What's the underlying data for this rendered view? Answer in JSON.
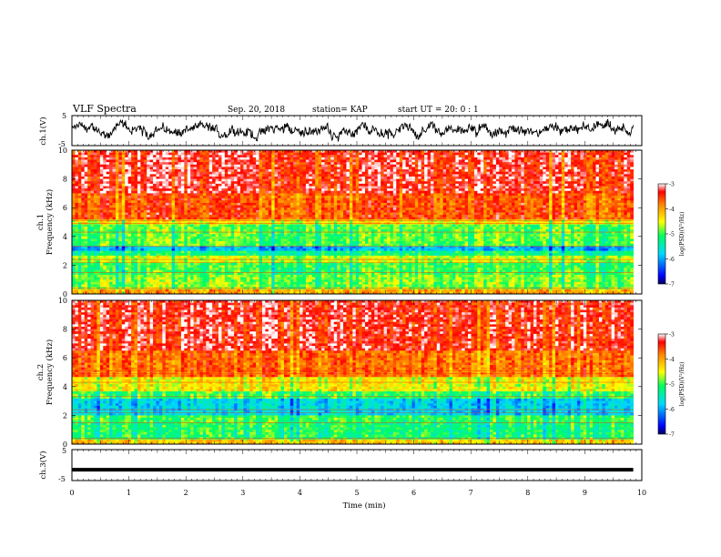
{
  "header": {
    "title": "VLF Spectra",
    "date": "Sep. 20, 2018",
    "station": "station= KAP",
    "start": "start  UT =   20: 0  : 1"
  },
  "chart_data": [
    {
      "type": "line",
      "panel": "ch1-waveform",
      "ylabel": "ch.1(V)",
      "ylim": [
        -5,
        5
      ],
      "yticks": [
        "5",
        "-5"
      ],
      "xlim": [
        0,
        10
      ],
      "description_values": "noisy waveform oscillating roughly between -4 and 5 V",
      "color": "#000000"
    },
    {
      "type": "heatmap",
      "panel": "ch1-spectrogram",
      "ylabel": "ch.1\nFrequency  (kHz)",
      "ylabel_lines": [
        "ch.1",
        "Frequency  (kHz)"
      ],
      "ylim": [
        0,
        10
      ],
      "yticks": [
        "0",
        "2",
        "4",
        "6",
        "8",
        "10"
      ],
      "xlim": [
        0,
        9.85
      ],
      "colorbar": {
        "label": "log(PSD)(V²/Hz)",
        "ticks": [
          "-3",
          "-4",
          "-5",
          "-6",
          "-7"
        ],
        "range": [
          -7,
          -3
        ]
      },
      "bands": [
        {
          "from": 0,
          "to": 0.4,
          "level": -4.0
        },
        {
          "from": 0.4,
          "to": 1.3,
          "level": -4.8
        },
        {
          "from": 1.3,
          "to": 2.2,
          "level": -5.0
        },
        {
          "from": 2.2,
          "to": 2.6,
          "level": -4.6
        },
        {
          "from": 2.6,
          "to": 3.0,
          "level": -5.2
        },
        {
          "from": 3.0,
          "to": 3.4,
          "level": -5.9
        },
        {
          "from": 3.4,
          "to": 4.8,
          "level": -4.9
        },
        {
          "from": 4.8,
          "to": 5.2,
          "level": -4.4
        },
        {
          "from": 5.2,
          "to": 7.0,
          "level": -3.6
        },
        {
          "from": 7.0,
          "to": 10,
          "level": -3.3
        }
      ]
    },
    {
      "type": "heatmap",
      "panel": "ch2-spectrogram",
      "ylabel_lines": [
        "ch.2",
        "Frequency  (kHz)"
      ],
      "ylim": [
        0,
        10
      ],
      "yticks": [
        "0",
        "2",
        "4",
        "6",
        "8",
        "10"
      ],
      "xlim": [
        0,
        9.85
      ],
      "colorbar": {
        "label": "log(PSD)(V²/Hz)",
        "ticks": [
          "-3",
          "-4",
          "-5",
          "-6",
          "-7"
        ],
        "range": [
          -7,
          -3
        ]
      },
      "bands": [
        {
          "from": 0,
          "to": 0.4,
          "level": -4.2
        },
        {
          "from": 0.4,
          "to": 1.5,
          "level": -5.1
        },
        {
          "from": 1.5,
          "to": 2.0,
          "level": -5.0
        },
        {
          "from": 2.0,
          "to": 3.1,
          "level": -5.7
        },
        {
          "from": 3.1,
          "to": 3.7,
          "level": -5.0
        },
        {
          "from": 3.7,
          "to": 4.6,
          "level": -4.4
        },
        {
          "from": 4.6,
          "to": 6.5,
          "level": -3.7
        },
        {
          "from": 6.5,
          "to": 10,
          "level": -3.3
        }
      ]
    },
    {
      "type": "line",
      "panel": "ch3-waveform",
      "ylabel": "ch.3(V)",
      "ylim": [
        -5,
        5
      ],
      "yticks": [
        "5",
        "-5"
      ],
      "xlim": [
        0,
        10
      ],
      "xlabel": "Time  (min)",
      "xticks": [
        "0",
        "1",
        "2",
        "3",
        "4",
        "5",
        "6",
        "7",
        "8",
        "9",
        "10"
      ],
      "values_constant": -1.5,
      "color": "#000000"
    }
  ]
}
